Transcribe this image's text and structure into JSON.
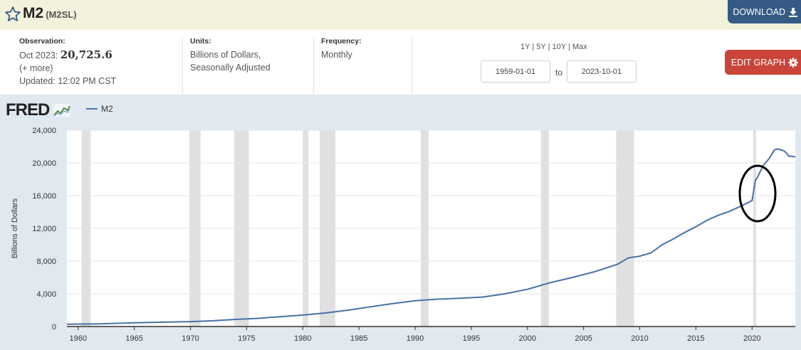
{
  "header": {
    "title": "M2",
    "series_id": "(M2SL)",
    "download_label": "DOWNLOAD"
  },
  "meta": {
    "observation_label": "Observation:",
    "observation_date": "Oct 2023:",
    "observation_value": "20,725.6",
    "more_label": "(+ more)",
    "updated": "Updated: 12:02 PM CST",
    "units_label": "Units:",
    "units_line1": "Billions of Dollars,",
    "units_line2": "Seasonally Adjusted",
    "frequency_label": "Frequency:",
    "frequency_value": "Monthly"
  },
  "controls": {
    "range_1y": "1Y",
    "range_5y": "5Y",
    "range_10y": "10Y",
    "range_max": "Max",
    "separator": "|",
    "start_date": "1959-01-01",
    "to_label": "to",
    "end_date": "2023-10-01",
    "edit_label": "EDIT GRAPH"
  },
  "logo": {
    "text": "FRED"
  },
  "colors": {
    "line": "#4572a7",
    "recession": "#e0e0e0",
    "plot_bg": "#ffffff",
    "outer_bg": "#e1e9f0",
    "annotation": "#000000"
  },
  "chart_data": {
    "type": "line",
    "xlabel": "",
    "ylabel": "Billions of Dollars",
    "xlim": [
      1959.0,
      2023.85
    ],
    "ylim": [
      0,
      24000
    ],
    "y_ticks": [
      0,
      4000,
      8000,
      12000,
      16000,
      20000,
      24000
    ],
    "y_tick_labels": [
      "0",
      "4,000",
      "8,000",
      "12,000",
      "16,000",
      "20,000",
      "24,000"
    ],
    "x_ticks": [
      1960,
      1965,
      1970,
      1975,
      1980,
      1985,
      1990,
      1995,
      2000,
      2005,
      2010,
      2015,
      2020
    ],
    "x_tick_labels": [
      "1960",
      "1965",
      "1970",
      "1975",
      "1980",
      "1985",
      "1990",
      "1995",
      "2000",
      "2005",
      "2010",
      "2015",
      "2020"
    ],
    "grid": true,
    "recessions": [
      [
        1960.3,
        1961.1
      ],
      [
        1969.9,
        1970.9
      ],
      [
        1973.9,
        1975.2
      ],
      [
        1980.0,
        1980.5
      ],
      [
        1981.5,
        1982.9
      ],
      [
        1990.5,
        1991.2
      ],
      [
        2001.2,
        2001.9
      ],
      [
        2007.9,
        2009.5
      ],
      [
        2020.1,
        2020.3
      ]
    ],
    "series": [
      {
        "name": "M2",
        "points": [
          [
            1959.0,
            290
          ],
          [
            1962.0,
            320
          ],
          [
            1965.0,
            450
          ],
          [
            1968.0,
            550
          ],
          [
            1970.0,
            600
          ],
          [
            1972.0,
            700
          ],
          [
            1974.0,
            870
          ],
          [
            1976.0,
            1000
          ],
          [
            1978.0,
            1200
          ],
          [
            1980.0,
            1400
          ],
          [
            1982.0,
            1650
          ],
          [
            1984.0,
            2000
          ],
          [
            1986.0,
            2400
          ],
          [
            1988.0,
            2800
          ],
          [
            1990.0,
            3150
          ],
          [
            1992.0,
            3350
          ],
          [
            1994.0,
            3450
          ],
          [
            1996.0,
            3600
          ],
          [
            1998.0,
            4000
          ],
          [
            2000.0,
            4550
          ],
          [
            2002.0,
            5350
          ],
          [
            2004.0,
            6000
          ],
          [
            2006.0,
            6700
          ],
          [
            2008.0,
            7600
          ],
          [
            2009.0,
            8400
          ],
          [
            2010.0,
            8600
          ],
          [
            2011.0,
            9000
          ],
          [
            2012.0,
            10000
          ],
          [
            2013.0,
            10700
          ],
          [
            2014.0,
            11500
          ],
          [
            2015.0,
            12200
          ],
          [
            2016.0,
            13000
          ],
          [
            2017.0,
            13600
          ],
          [
            2018.0,
            14100
          ],
          [
            2019.0,
            14700
          ],
          [
            2020.0,
            15400
          ],
          [
            2020.3,
            17900
          ],
          [
            2020.5,
            18300
          ],
          [
            2021.0,
            19700
          ],
          [
            2021.5,
            20500
          ],
          [
            2022.0,
            21600
          ],
          [
            2022.3,
            21700
          ],
          [
            2022.8,
            21500
          ],
          [
            2023.0,
            21300
          ],
          [
            2023.3,
            20800
          ],
          [
            2023.6,
            20800
          ],
          [
            2023.85,
            20725.6
          ]
        ]
      }
    ]
  }
}
